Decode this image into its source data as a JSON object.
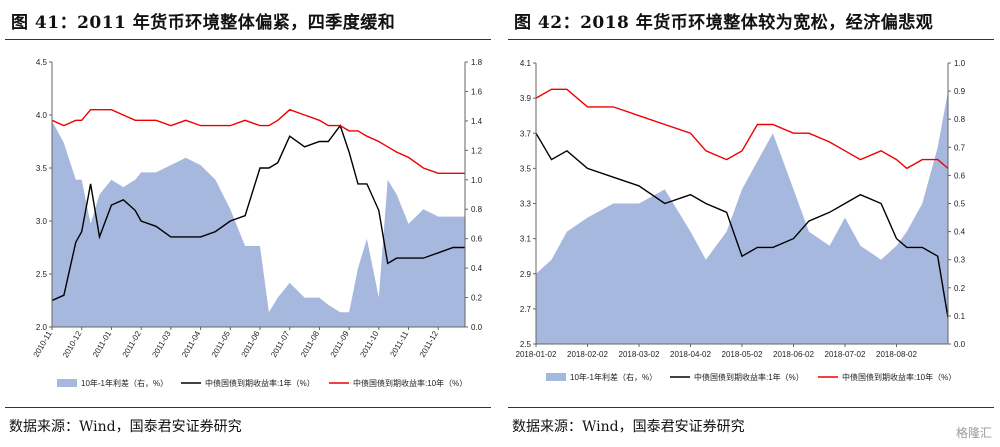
{
  "charts": [
    {
      "title": "图 41：2011 年货币环境整体偏紧，四季度缓和",
      "source": "数据来源：Wind，国泰君安证券研究"
    },
    {
      "title": "图 42：2018 年货币环境整体较为宽松，经济偏悲观",
      "source": "数据来源：Wind，国泰君安证券研究"
    }
  ],
  "watermark": "格隆汇",
  "colors": {
    "spread_fill": "#a7b8df",
    "one_year": "#000000",
    "ten_year": "#ee0000"
  },
  "chart_data": [
    {
      "type": "line",
      "ylim_left": [
        2.0,
        4.5
      ],
      "ylim_right": [
        0.0,
        1.8
      ],
      "yticks_left": [
        "2.0",
        "2.5",
        "3.0",
        "3.5",
        "4.0",
        "4.5"
      ],
      "yticks_right": [
        "0.0",
        "0.2",
        "0.4",
        "0.6",
        "0.8",
        "1.0",
        "1.2",
        "1.4",
        "1.6",
        "1.8"
      ],
      "x_ticks": [
        "2010-11",
        "2010-12",
        "2011-01",
        "2011-02",
        "2011-03",
        "2011-04",
        "2011-05",
        "2011-06",
        "2011-07",
        "2011-08",
        "2011-09",
        "2011-10",
        "2011-11",
        "2011-12"
      ],
      "x": [
        0,
        0.4,
        0.8,
        1,
        1.3,
        1.6,
        2,
        2.4,
        2.8,
        3,
        3.5,
        4,
        4.5,
        5,
        5.5,
        6,
        6.5,
        7,
        7.3,
        7.6,
        8,
        8.5,
        9,
        9.3,
        9.7,
        10,
        10.3,
        10.6,
        11,
        11.3,
        11.6,
        12,
        12.5,
        13,
        13.5,
        13.9
      ],
      "legend": [
        "10年-1年利差（右，%）",
        "中债国债到期收益率:1年（%）",
        "中债国债到期收益率:10年（%）"
      ],
      "series": [
        {
          "name": "10年-1年利差（右，%）",
          "axis": "right",
          "values": [
            1.4,
            1.25,
            1.0,
            1.0,
            0.7,
            0.9,
            1.0,
            0.95,
            1.0,
            1.05,
            1.05,
            1.1,
            1.15,
            1.1,
            1.0,
            0.8,
            0.55,
            0.55,
            0.1,
            0.2,
            0.3,
            0.2,
            0.2,
            0.15,
            0.1,
            0.1,
            0.4,
            0.6,
            0.2,
            1.0,
            0.9,
            0.7,
            0.8,
            0.75,
            0.75,
            0.75
          ]
        },
        {
          "name": "中债国债到期收益率:1年（%）",
          "axis": "left",
          "values": [
            2.25,
            2.3,
            2.8,
            2.9,
            3.35,
            2.85,
            3.15,
            3.2,
            3.1,
            3.0,
            2.95,
            2.85,
            2.85,
            2.85,
            2.9,
            3.0,
            3.05,
            3.5,
            3.5,
            3.55,
            3.8,
            3.7,
            3.75,
            3.75,
            3.9,
            3.65,
            3.35,
            3.35,
            3.1,
            2.6,
            2.65,
            2.65,
            2.65,
            2.7,
            2.75,
            2.75
          ]
        },
        {
          "name": "中债国债到期收益率:10年（%）",
          "axis": "left",
          "values": [
            3.95,
            3.9,
            3.95,
            3.95,
            4.05,
            4.05,
            4.05,
            4.0,
            3.95,
            3.95,
            3.95,
            3.9,
            3.95,
            3.9,
            3.9,
            3.9,
            3.95,
            3.9,
            3.9,
            3.95,
            4.05,
            4.0,
            3.95,
            3.9,
            3.9,
            3.85,
            3.85,
            3.8,
            3.75,
            3.7,
            3.65,
            3.6,
            3.5,
            3.45,
            3.45,
            3.45
          ]
        }
      ]
    },
    {
      "type": "line",
      "ylim_left": [
        2.5,
        4.1
      ],
      "ylim_right": [
        0.0,
        1.0
      ],
      "yticks_left": [
        "2.5",
        "2.7",
        "2.9",
        "3.1",
        "3.3",
        "3.5",
        "3.7",
        "3.9",
        "4.1"
      ],
      "yticks_right": [
        "0.0",
        "0.1",
        "0.2",
        "0.3",
        "0.4",
        "0.5",
        "0.6",
        "0.7",
        "0.8",
        "0.9",
        "1.0"
      ],
      "x_ticks": [
        "2018-01-02",
        "2018-02-02",
        "2018-03-02",
        "2018-04-02",
        "2018-05-02",
        "2018-06-02",
        "2018-07-02",
        "2018-08-02"
      ],
      "x": [
        0,
        0.3,
        0.6,
        1,
        1.5,
        2,
        2.5,
        3,
        3.3,
        3.7,
        4,
        4.3,
        4.6,
        5,
        5.3,
        5.7,
        6,
        6.3,
        6.7,
        7,
        7.2,
        7.5,
        7.8,
        8
      ],
      "legend": [
        "10年-1年利差（右，%）",
        "中债国债到期收益率:1年（%）",
        "中债国债到期收益率:10年（%）"
      ],
      "series": [
        {
          "name": "10年-1年利差（右，%）",
          "axis": "right",
          "values": [
            0.25,
            0.3,
            0.4,
            0.45,
            0.5,
            0.5,
            0.55,
            0.4,
            0.3,
            0.4,
            0.55,
            0.65,
            0.75,
            0.55,
            0.4,
            0.35,
            0.45,
            0.35,
            0.3,
            0.35,
            0.4,
            0.5,
            0.7,
            0.9
          ]
        },
        {
          "name": "中债国债到期收益率:1年（%）",
          "axis": "left",
          "values": [
            3.7,
            3.55,
            3.6,
            3.5,
            3.45,
            3.4,
            3.3,
            3.35,
            3.3,
            3.25,
            3.0,
            3.05,
            3.05,
            3.1,
            3.2,
            3.25,
            3.3,
            3.35,
            3.3,
            3.1,
            3.05,
            3.05,
            3.0,
            2.65
          ]
        },
        {
          "name": "中债国债到期收益率:10年（%）",
          "axis": "left",
          "values": [
            3.9,
            3.95,
            3.95,
            3.85,
            3.85,
            3.8,
            3.75,
            3.7,
            3.6,
            3.55,
            3.6,
            3.75,
            3.75,
            3.7,
            3.7,
            3.65,
            3.6,
            3.55,
            3.6,
            3.55,
            3.5,
            3.55,
            3.55,
            3.5
          ]
        }
      ]
    }
  ]
}
